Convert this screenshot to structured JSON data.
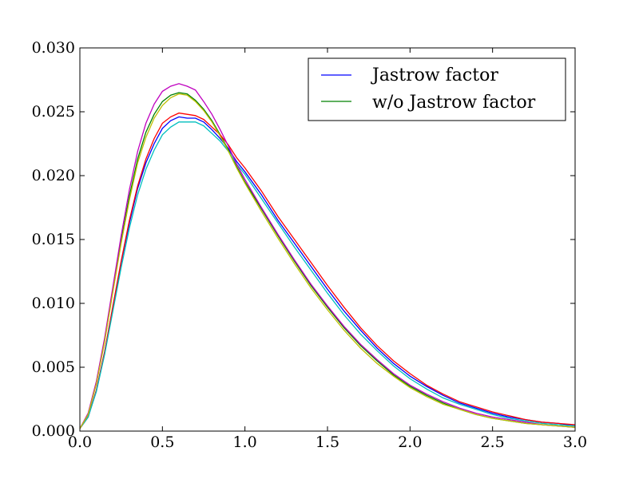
{
  "chart_data": {
    "type": "line",
    "title": "",
    "xlabel": "",
    "ylabel": "",
    "xlim": [
      0.0,
      3.0
    ],
    "ylim": [
      0.0,
      0.03
    ],
    "grid": false,
    "legend_position": "top-right",
    "x_ticks": [
      "0.0",
      "0.5",
      "1.0",
      "1.5",
      "2.0",
      "2.5",
      "3.0"
    ],
    "y_ticks": [
      "0.000",
      "0.005",
      "0.010",
      "0.015",
      "0.020",
      "0.025",
      "0.030"
    ],
    "legend": [
      {
        "label": "Jastrow factor",
        "color": "#0000ff"
      },
      {
        "label": "w/o Jastrow factor",
        "color": "#008000"
      }
    ],
    "x": [
      0.0,
      0.05,
      0.1,
      0.15,
      0.2,
      0.25,
      0.3,
      0.35,
      0.4,
      0.45,
      0.5,
      0.55,
      0.6,
      0.65,
      0.7,
      0.75,
      0.8,
      0.85,
      0.9,
      0.95,
      1.0,
      1.1,
      1.2,
      1.3,
      1.4,
      1.5,
      1.6,
      1.7,
      1.8,
      1.9,
      2.0,
      2.1,
      2.2,
      2.3,
      2.4,
      2.5,
      2.6,
      2.7,
      2.8,
      2.9,
      3.0
    ],
    "series": [
      {
        "color": "#0000ff",
        "values": [
          0.0002,
          0.0011,
          0.0032,
          0.0062,
          0.0097,
          0.0132,
          0.0163,
          0.019,
          0.021,
          0.0225,
          0.0237,
          0.0243,
          0.0246,
          0.0245,
          0.0245,
          0.0242,
          0.0236,
          0.0229,
          0.0221,
          0.0211,
          0.0203,
          0.0185,
          0.0165,
          0.0147,
          0.0129,
          0.0111,
          0.0094,
          0.0079,
          0.0065,
          0.0053,
          0.0043,
          0.0035,
          0.0028,
          0.0022,
          0.0018,
          0.0014,
          0.0011,
          0.0009,
          0.0007,
          0.0006,
          0.0004
        ]
      },
      {
        "color": "#008000",
        "values": [
          0.0002,
          0.0013,
          0.0038,
          0.0071,
          0.011,
          0.0149,
          0.0184,
          0.0213,
          0.0234,
          0.0248,
          0.0258,
          0.0263,
          0.0265,
          0.0264,
          0.0259,
          0.0252,
          0.0243,
          0.0232,
          0.022,
          0.0207,
          0.0195,
          0.0174,
          0.0153,
          0.0133,
          0.0114,
          0.0097,
          0.0081,
          0.0067,
          0.0055,
          0.0044,
          0.0035,
          0.0028,
          0.0022,
          0.0017,
          0.0013,
          0.001,
          0.0008,
          0.0006,
          0.0005,
          0.0004,
          0.0003
        ]
      },
      {
        "color": "#ff0000",
        "values": [
          0.0002,
          0.0011,
          0.0032,
          0.0062,
          0.0098,
          0.0133,
          0.0165,
          0.0192,
          0.0213,
          0.0229,
          0.0241,
          0.0246,
          0.0249,
          0.0248,
          0.0247,
          0.0244,
          0.0238,
          0.0232,
          0.0224,
          0.0214,
          0.0206,
          0.0188,
          0.0168,
          0.015,
          0.0132,
          0.0114,
          0.0097,
          0.0081,
          0.0067,
          0.0055,
          0.0045,
          0.0036,
          0.0029,
          0.0023,
          0.0019,
          0.0015,
          0.0012,
          0.0009,
          0.0007,
          0.0006,
          0.0005
        ]
      },
      {
        "color": "#00bfbf",
        "values": [
          0.0002,
          0.0011,
          0.0031,
          0.006,
          0.0094,
          0.0128,
          0.0159,
          0.0185,
          0.0205,
          0.022,
          0.0232,
          0.0238,
          0.0242,
          0.0242,
          0.0242,
          0.0239,
          0.0233,
          0.0227,
          0.0219,
          0.0209,
          0.0201,
          0.0182,
          0.0163,
          0.0144,
          0.0126,
          0.0108,
          0.0091,
          0.0076,
          0.0063,
          0.0051,
          0.0041,
          0.0033,
          0.0026,
          0.0021,
          0.0017,
          0.0013,
          0.001,
          0.0008,
          0.0006,
          0.0005,
          0.0004
        ]
      },
      {
        "color": "#bf00bf",
        "values": [
          0.0002,
          0.0014,
          0.0039,
          0.0073,
          0.0113,
          0.0153,
          0.0189,
          0.0219,
          0.0241,
          0.0256,
          0.0266,
          0.027,
          0.0272,
          0.027,
          0.0267,
          0.0258,
          0.0248,
          0.0236,
          0.0223,
          0.0209,
          0.0197,
          0.0175,
          0.0154,
          0.0134,
          0.0115,
          0.0098,
          0.0082,
          0.0068,
          0.0056,
          0.0045,
          0.0036,
          0.0029,
          0.0023,
          0.0018,
          0.0014,
          0.0011,
          0.0009,
          0.0007,
          0.0005,
          0.0004,
          0.0003
        ]
      },
      {
        "color": "#bfbf00",
        "values": [
          0.0002,
          0.0013,
          0.0037,
          0.007,
          0.0109,
          0.0147,
          0.0181,
          0.021,
          0.023,
          0.0245,
          0.0255,
          0.0261,
          0.0264,
          0.0263,
          0.0258,
          0.0251,
          0.0242,
          0.0231,
          0.0219,
          0.0206,
          0.0194,
          0.0172,
          0.0151,
          0.0131,
          0.0112,
          0.0095,
          0.0079,
          0.0065,
          0.0053,
          0.0043,
          0.0034,
          0.0027,
          0.0021,
          0.0017,
          0.0013,
          0.001,
          0.0008,
          0.0006,
          0.0005,
          0.0004,
          0.0003
        ]
      }
    ]
  }
}
